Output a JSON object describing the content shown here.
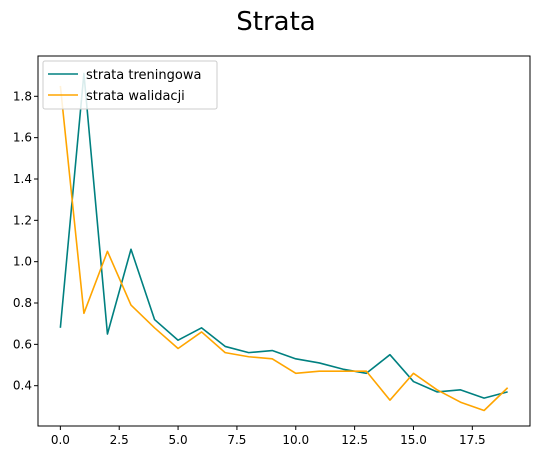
{
  "chart_data": {
    "type": "line",
    "title": "Strata",
    "xlabel": "",
    "ylabel": "",
    "xlim": [
      -0.95,
      19.95
    ],
    "ylim": [
      0.205,
      1.995
    ],
    "xticks": [
      0.0,
      2.5,
      5.0,
      7.5,
      10.0,
      12.5,
      15.0,
      17.5
    ],
    "xtick_labels": [
      "0.0",
      "2.5",
      "5.0",
      "7.5",
      "10.0",
      "12.5",
      "15.0",
      "17.5"
    ],
    "yticks": [
      0.4,
      0.6,
      0.8,
      1.0,
      1.2,
      1.4,
      1.6,
      1.8
    ],
    "ytick_labels": [
      "0.4",
      "0.6",
      "0.8",
      "1.0",
      "1.2",
      "1.4",
      "1.6",
      "1.8"
    ],
    "grid": false,
    "legend_position": "top-left",
    "x": [
      0,
      1,
      2,
      3,
      4,
      5,
      6,
      7,
      8,
      9,
      10,
      11,
      12,
      13,
      14,
      15,
      16,
      17,
      18,
      19
    ],
    "series": [
      {
        "name": "strata treningowa",
        "color": "#008080",
        "values": [
          0.68,
          1.91,
          0.65,
          1.06,
          0.72,
          0.62,
          0.68,
          0.59,
          0.56,
          0.57,
          0.53,
          0.51,
          0.48,
          0.46,
          0.55,
          0.42,
          0.37,
          0.38,
          0.34,
          0.37
        ]
      },
      {
        "name": "strata walidacji",
        "color": "#FFA500",
        "values": [
          1.85,
          0.75,
          1.05,
          0.79,
          0.68,
          0.58,
          0.66,
          0.56,
          0.54,
          0.53,
          0.46,
          0.47,
          0.47,
          0.47,
          0.33,
          0.46,
          0.38,
          0.32,
          0.28,
          0.39
        ]
      }
    ]
  }
}
